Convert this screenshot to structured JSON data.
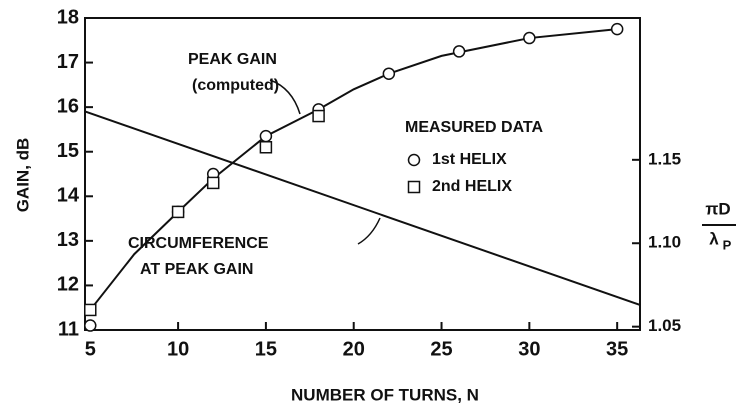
{
  "chart_data": {
    "type": "line",
    "xlabel": "NUMBER OF TURNS, N",
    "ylabel": "GAIN, dB",
    "y2label_top": "πD",
    "y2label_bottom": "λ",
    "y2label_sub": "P",
    "annotations": [
      "PEAK GAIN",
      "(computed)",
      "CIRCUMFERENCE",
      "AT PEAK GAIN"
    ],
    "legend_title": "MEASURED DATA",
    "xlim": [
      4.7,
      36.3
    ],
    "xticks": [
      5,
      10,
      15,
      20,
      25,
      30,
      35
    ],
    "ylim": [
      11,
      18
    ],
    "yticks": [
      11,
      12,
      13,
      14,
      15,
      16,
      17,
      18
    ],
    "y2lim": [
      1.048,
      1.235
    ],
    "y2ticks": [
      1.05,
      {
        "value": 1.1,
        "label": "1.10"
      },
      1.15
    ],
    "series": [
      {
        "marker": "line",
        "color": "#111",
        "x": [
          5,
          7.5,
          10,
          12,
          15,
          18,
          20,
          22,
          25,
          30,
          35
        ],
        "values": [
          11.45,
          12.7,
          13.65,
          14.4,
          15.35,
          15.95,
          16.4,
          16.75,
          17.15,
          17.55,
          17.75
        ]
      },
      {
        "name": "1st HELIX",
        "marker": "circle",
        "color": "#111",
        "x": [
          5,
          10,
          12,
          15,
          18,
          22,
          26,
          30,
          35
        ],
        "values": [
          11.1,
          13.65,
          14.5,
          15.35,
          15.95,
          16.75,
          17.25,
          17.55,
          17.75
        ]
      },
      {
        "name": "2nd HELIX",
        "marker": "square",
        "color": "#111",
        "x": [
          5,
          10,
          12,
          15,
          18
        ],
        "values": [
          11.45,
          13.65,
          14.3,
          15.1,
          15.8
        ]
      },
      {
        "marker": "line",
        "axis": "y2",
        "color": "#111",
        "x": [
          4.7,
          36.3
        ],
        "values": [
          1.179,
          1.063
        ]
      }
    ]
  }
}
